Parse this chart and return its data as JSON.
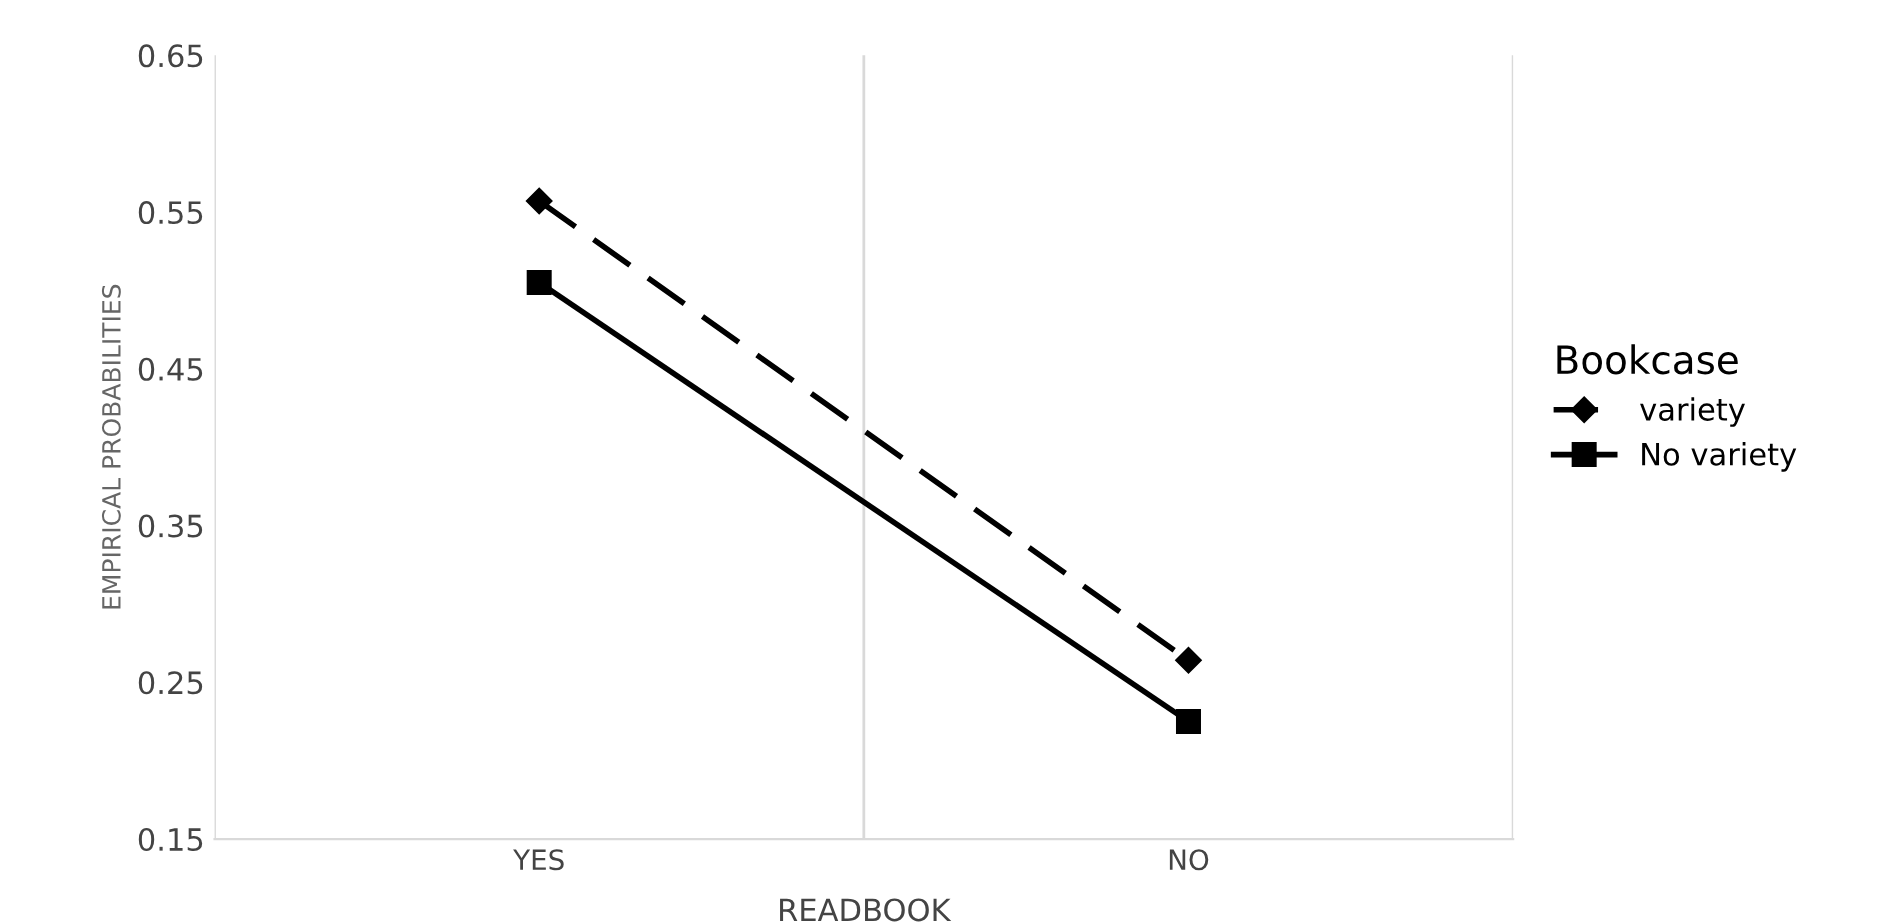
{
  "chart_data": {
    "type": "line",
    "xlabel": "READBOOK",
    "ylabel": "EMPIRICAL PROBABILITIES",
    "legend_title": "Bookcase",
    "categories": [
      "YES",
      "NO"
    ],
    "series": [
      {
        "name": "variety",
        "color": "#000000",
        "values": [
          0.557,
          0.264
        ],
        "marker": "diamond",
        "line_style": "dashed"
      },
      {
        "name": "No variety",
        "color": "#000000",
        "values": [
          0.505,
          0.225
        ],
        "marker": "square",
        "line_style": "solid"
      }
    ],
    "ylim": [
      0.15,
      0.65
    ],
    "yticks": [
      0.15,
      0.25,
      0.35,
      0.45,
      0.55,
      0.65
    ],
    "grid": "x",
    "legend": "right"
  }
}
